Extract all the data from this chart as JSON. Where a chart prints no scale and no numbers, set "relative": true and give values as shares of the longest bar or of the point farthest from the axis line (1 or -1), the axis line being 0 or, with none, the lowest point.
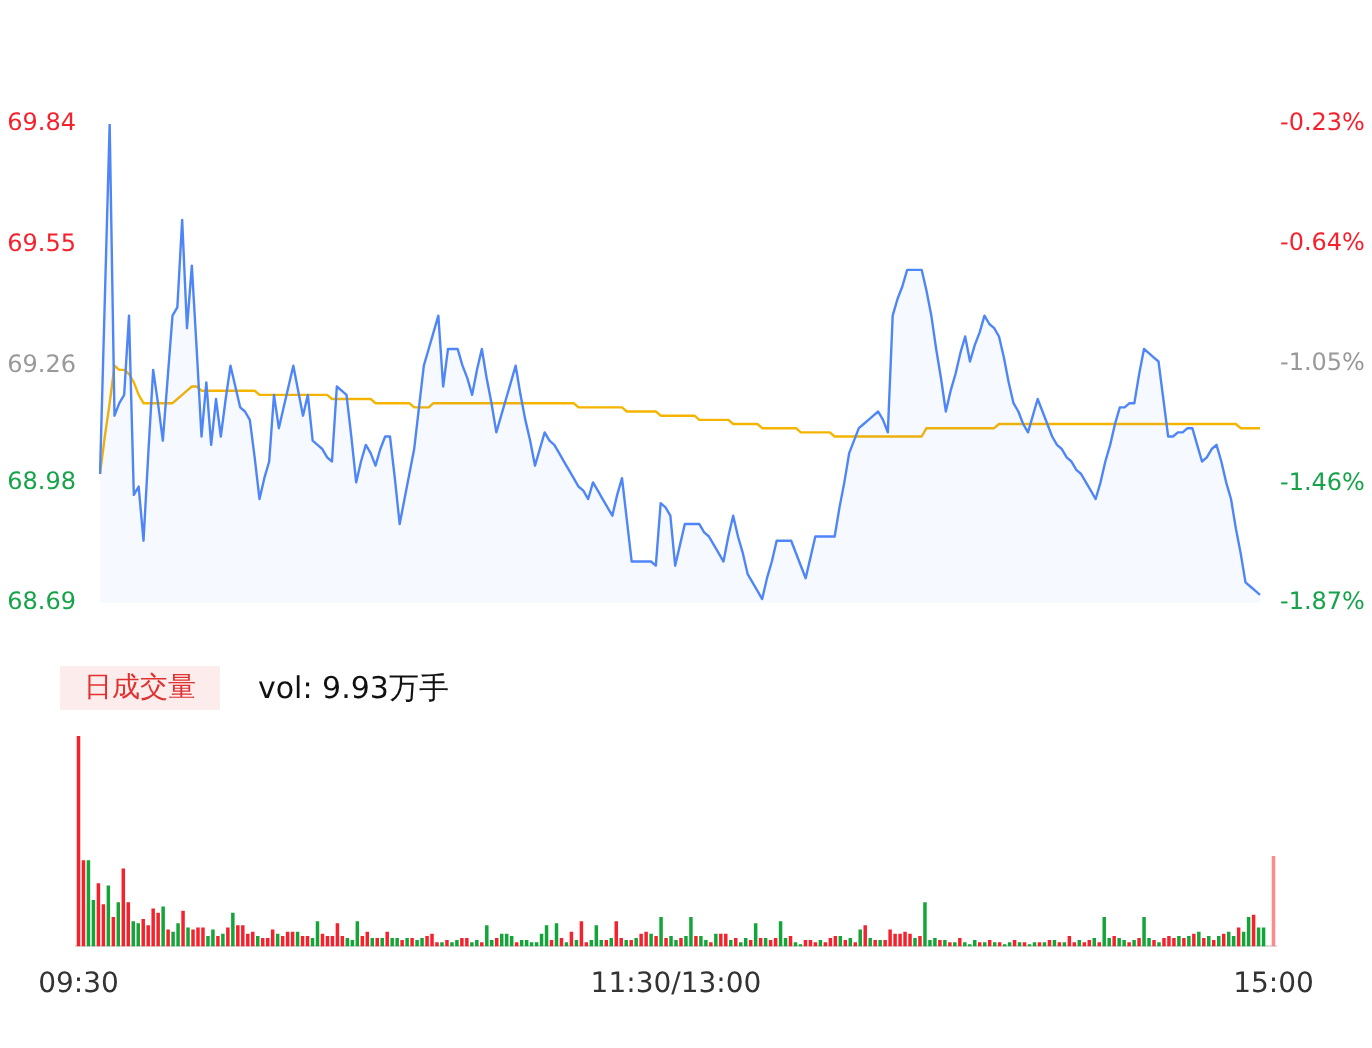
{
  "chart_data": [
    {
      "type": "line",
      "ylim": [
        68.69,
        69.84
      ],
      "yticks": [
        68.69,
        68.98,
        69.26,
        69.55,
        69.84
      ],
      "y2lim": [
        -1.87,
        -0.23
      ],
      "y2ticks": [
        {
          "value": -1.87,
          "label": "-1.87%"
        },
        {
          "value": -1.46,
          "label": "-1.46%"
        },
        {
          "value": -1.05,
          "label": "-1.05%"
        },
        {
          "value": -0.64,
          "label": "-0.64%"
        },
        {
          "value": -0.23,
          "label": "-0.23%"
        }
      ],
      "marker": "none",
      "categories": [
        null,
        null,
        null,
        null,
        null,
        null,
        null,
        null,
        null,
        null,
        null,
        null,
        null,
        null,
        null,
        null,
        null,
        null,
        null,
        null,
        null,
        null,
        null,
        null,
        null,
        null,
        null,
        null,
        null,
        null,
        null,
        null,
        null,
        null,
        null,
        null,
        null,
        null,
        null,
        null,
        null,
        null,
        null,
        null,
        null,
        null,
        null,
        null,
        null,
        null,
        null,
        null,
        null,
        null,
        null,
        null,
        null,
        null,
        null,
        null,
        null,
        null,
        null,
        null,
        null,
        null,
        null,
        null,
        null,
        null,
        null,
        null,
        null,
        null,
        null,
        null,
        null,
        null,
        null,
        null,
        null,
        null,
        null,
        null,
        null,
        null,
        null,
        null,
        null,
        null,
        null,
        null,
        null,
        null,
        null,
        null,
        null,
        null,
        null,
        null,
        null,
        null,
        null,
        null,
        null,
        null,
        null,
        null,
        null,
        null,
        null,
        null,
        null,
        null,
        null,
        null,
        null,
        null,
        null,
        null,
        null,
        null,
        null,
        null,
        null,
        null,
        null,
        null,
        null,
        null,
        null,
        null,
        null,
        null,
        null,
        null,
        null,
        null,
        null,
        null,
        null,
        null,
        null,
        null,
        null,
        null,
        null,
        null,
        null,
        null,
        null,
        null,
        null,
        null,
        null,
        null,
        null,
        null,
        null,
        null,
        null,
        null,
        null,
        null,
        null,
        null,
        null,
        null,
        null,
        null,
        null,
        null,
        null,
        null,
        null,
        null,
        null,
        null,
        null,
        null,
        null,
        null,
        null,
        null,
        null,
        null,
        null,
        null,
        null,
        null,
        null,
        null,
        null,
        null,
        null,
        null,
        null,
        null,
        null,
        null,
        null,
        null,
        null,
        null,
        null,
        null,
        null,
        null,
        null,
        null,
        null,
        null,
        null,
        null,
        null,
        null,
        null,
        null,
        null,
        null,
        null,
        null,
        null,
        null,
        null,
        null,
        null,
        null,
        null,
        null,
        null,
        null,
        null,
        null,
        null,
        null,
        null,
        null,
        null,
        null,
        null
      ],
      "series": [
        {
          "type": "area",
          "color": "#4f86f7",
          "values": [
            69.0,
            69.42,
            69.84,
            69.14,
            69.17,
            69.19,
            69.38,
            68.95,
            68.97,
            68.84,
            69.05,
            69.25,
            69.17,
            69.08,
            69.23,
            69.38,
            69.4,
            69.61,
            69.35,
            69.5,
            69.3,
            69.09,
            69.22,
            69.07,
            69.18,
            69.09,
            69.18,
            69.26,
            69.21,
            69.16,
            69.15,
            69.13,
            69.04,
            68.94,
            68.99,
            69.03,
            69.19,
            69.11,
            69.16,
            69.21,
            69.26,
            69.2,
            69.14,
            69.19,
            69.08,
            69.07,
            69.06,
            69.04,
            69.03,
            69.21,
            69.2,
            69.19,
            69.09,
            68.98,
            69.03,
            69.07,
            69.05,
            69.02,
            69.06,
            69.09,
            69.09,
            68.99,
            68.88,
            68.94,
            69.0,
            69.06,
            69.16,
            69.26,
            69.3,
            69.34,
            69.38,
            69.21,
            69.3,
            69.3,
            69.3,
            69.26,
            69.23,
            69.19,
            69.25,
            69.3,
            69.23,
            69.17,
            69.1,
            69.14,
            69.18,
            69.22,
            69.26,
            69.19,
            69.13,
            69.08,
            69.02,
            69.06,
            69.1,
            69.08,
            69.07,
            69.05,
            69.03,
            69.01,
            68.99,
            68.97,
            68.96,
            68.94,
            68.98,
            68.96,
            68.94,
            68.92,
            68.9,
            68.95,
            68.99,
            68.89,
            68.79,
            68.79,
            68.79,
            68.79,
            68.79,
            68.78,
            68.93,
            68.92,
            68.9,
            68.78,
            68.83,
            68.88,
            68.88,
            68.88,
            68.88,
            68.86,
            68.85,
            68.83,
            68.81,
            68.79,
            68.85,
            68.9,
            68.85,
            68.81,
            68.76,
            68.74,
            68.72,
            68.7,
            68.75,
            68.79,
            68.84,
            68.84,
            68.84,
            68.84,
            68.81,
            68.78,
            68.75,
            68.8,
            68.85,
            68.85,
            68.85,
            68.85,
            68.85,
            68.92,
            68.98,
            69.05,
            69.08,
            69.11,
            69.12,
            69.13,
            69.14,
            69.15,
            69.13,
            69.1,
            69.38,
            69.42,
            69.45,
            69.49,
            69.49,
            69.49,
            69.49,
            69.44,
            69.38,
            69.3,
            69.23,
            69.15,
            69.2,
            69.24,
            69.29,
            69.33,
            69.27,
            69.31,
            69.34,
            69.38,
            69.36,
            69.35,
            69.33,
            69.28,
            69.22,
            69.17,
            69.15,
            69.12,
            69.1,
            69.14,
            69.18,
            69.15,
            69.12,
            69.09,
            69.07,
            69.06,
            69.04,
            69.03,
            69.01,
            69.0,
            68.98,
            68.96,
            68.94,
            68.98,
            69.03,
            69.07,
            69.12,
            69.16,
            69.16,
            69.17,
            69.17,
            69.24,
            69.3,
            69.29,
            69.28,
            69.27,
            69.18,
            69.09,
            69.09,
            69.1,
            69.1,
            69.11,
            69.11,
            69.07,
            69.03,
            69.04,
            69.06,
            69.07,
            69.03,
            68.98,
            68.94,
            68.87,
            68.81,
            68.74,
            68.73,
            68.72,
            68.71
          ]
        },
        {
          "type": "line",
          "color": "#f5b400",
          "values": [
            69.0,
            69.09,
            69.17,
            69.26,
            69.25,
            69.25,
            69.24,
            69.22,
            69.19,
            69.17,
            69.17,
            69.17,
            69.17,
            69.17,
            69.17,
            69.17,
            69.18,
            69.19,
            69.2,
            69.21,
            69.21,
            69.2,
            69.2,
            69.2,
            69.2,
            69.2,
            69.2,
            69.2,
            69.2,
            69.2,
            69.2,
            69.2,
            69.2,
            69.19,
            69.19,
            69.19,
            69.19,
            69.19,
            69.19,
            69.19,
            69.19,
            69.19,
            69.19,
            69.19,
            69.19,
            69.19,
            69.19,
            69.19,
            69.18,
            69.18,
            69.18,
            69.18,
            69.18,
            69.18,
            69.18,
            69.18,
            69.18,
            69.17,
            69.17,
            69.17,
            69.17,
            69.17,
            69.17,
            69.17,
            69.17,
            69.16,
            69.16,
            69.16,
            69.16,
            69.17,
            69.17,
            69.17,
            69.17,
            69.17,
            69.17,
            69.17,
            69.17,
            69.17,
            69.17,
            69.17,
            69.17,
            69.17,
            69.17,
            69.17,
            69.17,
            69.17,
            69.17,
            69.17,
            69.17,
            69.17,
            69.17,
            69.17,
            69.17,
            69.17,
            69.17,
            69.17,
            69.17,
            69.17,
            69.17,
            69.16,
            69.16,
            69.16,
            69.16,
            69.16,
            69.16,
            69.16,
            69.16,
            69.16,
            69.16,
            69.15,
            69.15,
            69.15,
            69.15,
            69.15,
            69.15,
            69.15,
            69.14,
            69.14,
            69.14,
            69.14,
            69.14,
            69.14,
            69.14,
            69.14,
            69.13,
            69.13,
            69.13,
            69.13,
            69.13,
            69.13,
            69.13,
            69.12,
            69.12,
            69.12,
            69.12,
            69.12,
            69.12,
            69.11,
            69.11,
            69.11,
            69.11,
            69.11,
            69.11,
            69.11,
            69.11,
            69.1,
            69.1,
            69.1,
            69.1,
            69.1,
            69.1,
            69.1,
            69.09,
            69.09,
            69.09,
            69.09,
            69.09,
            69.09,
            69.09,
            69.09,
            69.09,
            69.09,
            69.09,
            69.09,
            69.09,
            69.09,
            69.09,
            69.09,
            69.09,
            69.09,
            69.09,
            69.11,
            69.11,
            69.11,
            69.11,
            69.11,
            69.11,
            69.11,
            69.11,
            69.11,
            69.11,
            69.11,
            69.11,
            69.11,
            69.11,
            69.11,
            69.12,
            69.12,
            69.12,
            69.12,
            69.12,
            69.12,
            69.12,
            69.12,
            69.12,
            69.12,
            69.12,
            69.12,
            69.12,
            69.12,
            69.12,
            69.12,
            69.12,
            69.12,
            69.12,
            69.12,
            69.12,
            69.12,
            69.12,
            69.12,
            69.12,
            69.12,
            69.12,
            69.12,
            69.12,
            69.12,
            69.12,
            69.12,
            69.12,
            69.12,
            69.12,
            69.12,
            69.12,
            69.12,
            69.12,
            69.12,
            69.12,
            69.12,
            69.12,
            69.12,
            69.12,
            69.12,
            69.12,
            69.12,
            69.12,
            69.12,
            69.11,
            69.11,
            69.11,
            69.11,
            69.11
          ]
        }
      ]
    },
    {
      "type": "bar",
      "title": "日成交量",
      "subtitle": "vol: 9.93万手",
      "relative": true,
      "categories": [
        "09:30",
        null,
        null,
        null,
        null,
        null,
        null,
        null,
        null,
        null,
        null,
        null,
        null,
        null,
        null,
        null,
        null,
        null,
        null,
        null,
        null,
        null,
        null,
        null,
        null,
        null,
        null,
        null,
        null,
        null,
        null,
        null,
        null,
        null,
        null,
        null,
        null,
        null,
        null,
        null,
        null,
        null,
        null,
        null,
        null,
        null,
        null,
        null,
        null,
        null,
        null,
        null,
        null,
        null,
        null,
        null,
        null,
        null,
        null,
        null,
        null,
        null,
        null,
        null,
        null,
        null,
        null,
        null,
        null,
        null,
        null,
        null,
        null,
        null,
        null,
        null,
        null,
        null,
        null,
        null,
        null,
        null,
        null,
        null,
        null,
        null,
        null,
        null,
        null,
        null,
        null,
        null,
        null,
        null,
        null,
        null,
        null,
        null,
        null,
        null,
        null,
        null,
        null,
        null,
        null,
        null,
        null,
        null,
        null,
        null,
        null,
        null,
        null,
        null,
        null,
        null,
        null,
        null,
        null,
        null,
        "11:30/13:00",
        null,
        null,
        null,
        null,
        null,
        null,
        null,
        null,
        null,
        null,
        null,
        null,
        null,
        null,
        null,
        null,
        null,
        null,
        null,
        null,
        null,
        null,
        null,
        null,
        null,
        null,
        null,
        null,
        null,
        null,
        null,
        null,
        null,
        null,
        null,
        null,
        null,
        null,
        null,
        null,
        null,
        null,
        null,
        null,
        null,
        null,
        null,
        null,
        null,
        null,
        null,
        null,
        null,
        null,
        null,
        null,
        null,
        null,
        null,
        null,
        null,
        null,
        null,
        null,
        null,
        null,
        null,
        null,
        null,
        null,
        null,
        null,
        null,
        null,
        null,
        null,
        null,
        null,
        null,
        null,
        null,
        null,
        null,
        null,
        null,
        null,
        null,
        null,
        null,
        null,
        null,
        null,
        null,
        null,
        null,
        null,
        null,
        null,
        null,
        null,
        null,
        null,
        null,
        null,
        null,
        null,
        null,
        null,
        null,
        null,
        null,
        null,
        null,
        null,
        null,
        null,
        null,
        null,
        null,
        "15:00"
      ],
      "values": [
        1.0,
        0.41,
        0.41,
        0.22,
        0.3,
        0.2,
        0.29,
        0.14,
        0.21,
        0.37,
        0.21,
        0.12,
        0.11,
        0.13,
        0.1,
        0.18,
        0.16,
        0.19,
        0.08,
        0.07,
        0.11,
        0.17,
        0.09,
        0.08,
        0.09,
        0.09,
        0.05,
        0.08,
        0.05,
        0.06,
        0.09,
        0.16,
        0.1,
        0.1,
        0.06,
        0.07,
        0.05,
        0.04,
        0.04,
        0.08,
        0.06,
        0.05,
        0.07,
        0.07,
        0.07,
        0.05,
        0.05,
        0.04,
        0.12,
        0.06,
        0.05,
        0.05,
        0.11,
        0.05,
        0.04,
        0.03,
        0.12,
        0.05,
        0.07,
        0.04,
        0.04,
        0.04,
        0.07,
        0.04,
        0.04,
        0.03,
        0.04,
        0.04,
        0.03,
        0.04,
        0.05,
        0.06,
        0.02,
        0.02,
        0.03,
        0.02,
        0.03,
        0.04,
        0.04,
        0.02,
        0.03,
        0.02,
        0.1,
        0.03,
        0.04,
        0.06,
        0.06,
        0.05,
        0.02,
        0.03,
        0.03,
        0.02,
        0.02,
        0.06,
        0.1,
        0.03,
        0.11,
        0.04,
        0.02,
        0.07,
        0.03,
        0.12,
        0.02,
        0.03,
        0.1,
        0.03,
        0.03,
        0.04,
        0.12,
        0.04,
        0.03,
        0.03,
        0.04,
        0.06,
        0.07,
        0.06,
        0.05,
        0.14,
        0.04,
        0.05,
        0.03,
        0.04,
        0.05,
        0.14,
        0.05,
        0.05,
        0.03,
        0.02,
        0.06,
        0.06,
        0.06,
        0.03,
        0.04,
        0.02,
        0.04,
        0.03,
        0.11,
        0.04,
        0.04,
        0.03,
        0.04,
        0.12,
        0.04,
        0.05,
        0.02,
        0.01,
        0.03,
        0.03,
        0.02,
        0.03,
        0.02,
        0.04,
        0.05,
        0.05,
        0.03,
        0.04,
        0.02,
        0.08,
        0.1,
        0.04,
        0.03,
        0.03,
        0.03,
        0.08,
        0.06,
        0.06,
        0.07,
        0.06,
        0.04,
        0.05,
        0.21,
        0.03,
        0.04,
        0.03,
        0.03,
        0.02,
        0.02,
        0.04,
        0.02,
        0.01,
        0.03,
        0.02,
        0.02,
        0.03,
        0.02,
        0.02,
        0.01,
        0.02,
        0.03,
        0.02,
        0.02,
        0.01,
        0.02,
        0.02,
        0.02,
        0.03,
        0.03,
        0.02,
        0.02,
        0.05,
        0.02,
        0.03,
        0.02,
        0.03,
        0.04,
        0.02,
        0.14,
        0.04,
        0.05,
        0.04,
        0.03,
        0.02,
        0.03,
        0.04,
        0.14,
        0.04,
        0.03,
        0.02,
        0.04,
        0.05,
        0.04,
        0.05,
        0.04,
        0.05,
        0.06,
        0.07,
        0.04,
        0.05,
        0.03,
        0.05,
        0.06,
        0.07,
        0.05,
        0.09,
        0.07,
        0.14,
        0.15,
        0.09,
        0.09,
        null,
        0.43
      ],
      "colors": [
        "#f5222d",
        "#f5222d",
        "#13a538",
        "#13a538",
        "#f5222d",
        "#f5222d",
        "#13a538",
        "#f5222d",
        "#13a538",
        "#f5222d",
        "#f5222d",
        "#13a538",
        "#13a538",
        "#f5222d",
        "#f5222d",
        "#f5222d",
        "#f5222d",
        "#13a538",
        "#f5222d",
        "#13a538",
        "#13a538",
        "#f5222d",
        "#13a538",
        "#f5222d",
        "#f5222d",
        "#f5222d",
        "#13a538",
        "#13a538",
        "#f5222d",
        "#13a538",
        "#f5222d",
        "#13a538",
        "#f5222d",
        "#f5222d",
        "#f5222d",
        "#f5222d",
        "#13a538",
        "#f5222d",
        "#f5222d",
        "#f5222d",
        "#13a538",
        "#f5222d",
        "#f5222d",
        "#f5222d",
        "#13a538",
        "#f5222d",
        "#f5222d",
        "#13a538",
        "#13a538",
        "#f5222d",
        "#f5222d",
        "#f5222d",
        "#f5222d",
        "#f5222d",
        "#13a538",
        "#13a538",
        "#13a538",
        "#f5222d",
        "#f5222d",
        "#13a538",
        "#f5222d",
        "#13a538",
        "#f5222d",
        "#13a538",
        "#13a538",
        "#f5222d",
        "#13a538",
        "#f5222d",
        "#13a538",
        "#13a538",
        "#f5222d",
        "#f5222d",
        "#f5222d",
        "#13a538",
        "#f5222d",
        "#13a538",
        "#13a538",
        "#f5222d",
        "#f5222d",
        "#13a538",
        "#13a538",
        "#f5222d",
        "#13a538",
        "#13a538",
        "#f5222d",
        "#13a538",
        "#13a538",
        "#13a538",
        "#f5222d",
        "#13a538",
        "#13a538",
        "#13a538",
        "#13a538",
        "#13a538",
        "#13a538",
        "#f5222d",
        "#13a538",
        "#f5222d",
        "#13a538",
        "#f5222d",
        "#13a538",
        "#f5222d",
        "#f5222d",
        "#13a538",
        "#13a538",
        "#13a538",
        "#f5222d",
        "#13a538",
        "#f5222d",
        "#f5222d",
        "#13a538",
        "#f5222d",
        "#13a538",
        "#f5222d",
        "#f5222d",
        "#13a538",
        "#f5222d",
        "#13a538",
        "#f5222d",
        "#13a538",
        "#13a538",
        "#f5222d",
        "#13a538",
        "#13a538",
        "#f5222d",
        "#13a538",
        "#13a538",
        "#f5222d",
        "#13a538",
        "#f5222d",
        "#f5222d",
        "#13a538",
        "#f5222d",
        "#13a538",
        "#13a538",
        "#f5222d",
        "#13a538",
        "#f5222d",
        "#13a538",
        "#f5222d",
        "#f5222d",
        "#13a538",
        "#13a538",
        "#f5222d",
        "#13a538",
        "#13a538",
        "#f5222d",
        "#f5222d",
        "#f5222d",
        "#13a538",
        "#f5222d",
        "#f5222d",
        "#f5222d",
        "#13a538",
        "#f5222d",
        "#13a538",
        "#f5222d",
        "#13a538",
        "#f5222d",
        "#13a538",
        "#f5222d",
        "#13a538",
        "#f5222d",
        "#f5222d",
        "#f5222d",
        "#f5222d",
        "#f5222d",
        "#f5222d",
        "#13a538",
        "#f5222d",
        "#13a538",
        "#13a538",
        "#13a538",
        "#f5222d",
        "#13a538",
        "#f5222d",
        "#13a538",
        "#f5222d",
        "#13a538",
        "#13a538",
        "#13a538",
        "#f5222d",
        "#13a538",
        "#f5222d",
        "#13a538",
        "#f5222d",
        "#13a538",
        "#13a538",
        "#f5222d",
        "#13a538",
        "#f5222d",
        "#13a538",
        "#13a538",
        "#f5222d",
        "#13a538",
        "#f5222d",
        "#13a538",
        "#f5222d",
        "#13a538",
        "#f5222d",
        "#f5222d",
        "#13a538",
        "#f5222d",
        "#f5222d",
        "#13a538",
        "#f5222d",
        "#13a538",
        "#13a538",
        "#f5222d",
        "#13a538",
        "#13a538",
        "#f5222d",
        "#13a538",
        "#f5222d",
        "#13a538",
        "#13a538",
        "#f5222d",
        "#13a538",
        "#f5222d",
        "#f5222d",
        "#f5222d",
        "#13a538",
        "#f5222d",
        "#13a538",
        "#f5222d",
        "#13a538",
        "#f5222d",
        "#13a538",
        "#f5222d",
        "#13a538",
        "#f5222d",
        "#13a538",
        "#13a538",
        "#f5222d",
        "#13a538",
        "#13a538",
        "#f5222d",
        "#13a538",
        "#13a538",
        "#13a538",
        "#ff8a8a"
      ]
    }
  ]
}
